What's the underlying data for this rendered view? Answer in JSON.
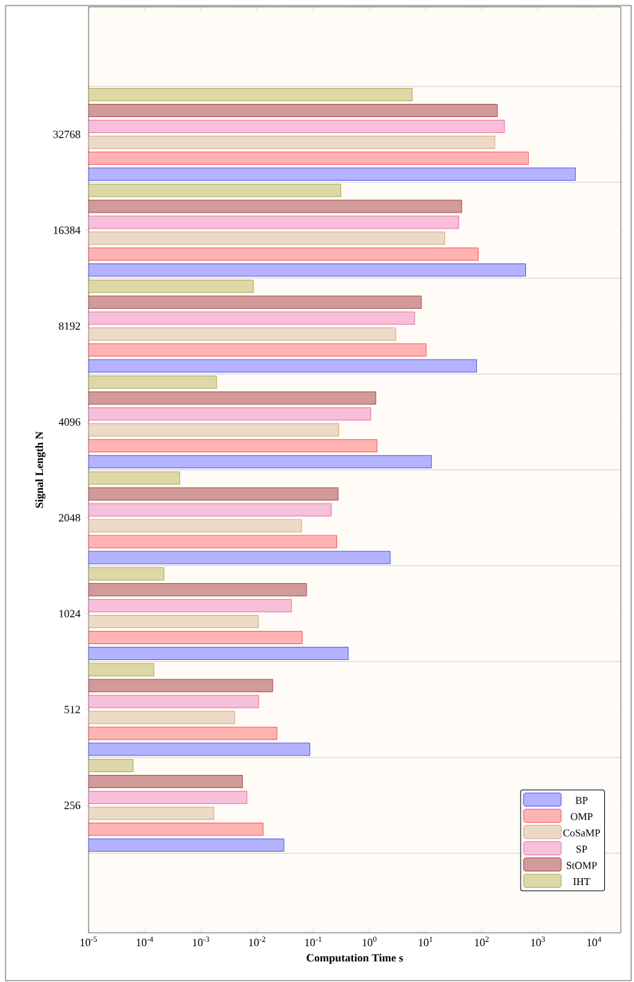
{
  "chart_data": {
    "type": "bar",
    "orientation": "horizontal",
    "log": "x",
    "grid": "y",
    "legend": "bottom right",
    "xlabel": "Computation Time s",
    "ylabel": "Signal Length N",
    "categories": [
      "32768",
      "16384",
      "8192",
      "4096",
      "2048",
      "1024",
      "512",
      "256"
    ],
    "xlim": [
      1e-05,
      30000
    ],
    "xticks": [
      {
        "value": 1e-05,
        "label": "10$^{-5}$"
      },
      {
        "value": 0.0001,
        "label": "10$^{-4}$"
      },
      {
        "value": 0.001,
        "label": "10$^{-3}$"
      },
      {
        "value": 0.01,
        "label": "10$^{-2}$"
      },
      {
        "value": 0.1,
        "label": "10$^{-1}$"
      },
      {
        "value": 1,
        "label": "10$^{0}$"
      },
      {
        "value": 10,
        "label": "10$^{1}$"
      },
      {
        "value": 100,
        "label": "10$^{2}$"
      },
      {
        "value": 1000,
        "label": "10$^{3}$"
      },
      {
        "value": 10000,
        "label": "10$^{4}$"
      }
    ],
    "series": [
      {
        "name": "BP",
        "color": "#b3b3ff",
        "values": [
          4650,
          605,
          81,
          12.7,
          2.35,
          0.42,
          0.087,
          0.03
        ]
      },
      {
        "name": "OMP",
        "color": "#ffb3b3",
        "values": [
          680,
          87,
          10.3,
          1.37,
          0.262,
          0.064,
          0.0226,
          0.0128
        ]
      },
      {
        "name": "CoSaMP",
        "color": "#ecd9c6",
        "values": [
          172,
          22,
          2.95,
          0.285,
          0.062,
          0.0105,
          0.004,
          0.0017
        ]
      },
      {
        "name": "SP",
        "color": "#f7bfd9",
        "values": [
          255,
          39,
          6.4,
          1.06,
          0.209,
          0.041,
          0.0107,
          0.0066
        ]
      },
      {
        "name": "StOMP",
        "color": "#d39a9a",
        "values": [
          190,
          44,
          8.4,
          1.3,
          0.277,
          0.076,
          0.019,
          0.0055
        ]
      },
      {
        "name": "IHT",
        "color": "#ddd8a8",
        "values": [
          5.8,
          0.31,
          0.0086,
          0.0019,
          0.00042,
          0.00022,
          0.000145,
          6.2e-05
        ]
      }
    ]
  }
}
